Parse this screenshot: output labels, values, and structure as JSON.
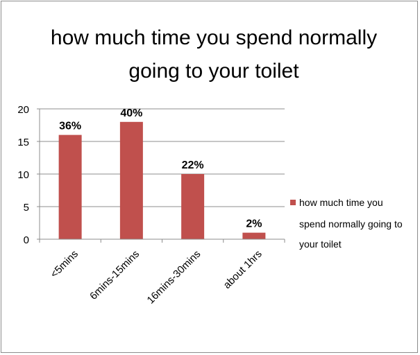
{
  "chart_data": {
    "type": "bar",
    "title_lines": [
      "how much time you spend normally",
      "going to your toilet"
    ],
    "categories": [
      "<5mins",
      "6mins-15mins",
      "16mins-30mins",
      "about 1hrs"
    ],
    "series": [
      {
        "name": "how much time you spend normally going to your toilet",
        "legend_lines": [
          "how much time you",
          "spend normally going to",
          "your toilet"
        ],
        "values": [
          16,
          18,
          10,
          1
        ],
        "data_labels": [
          "36%",
          "40%",
          "22%",
          "2%"
        ],
        "color": "#c0504d"
      }
    ],
    "ylim": [
      0,
      20
    ],
    "yticks": [
      0,
      5,
      10,
      15,
      20
    ],
    "grid": true,
    "legend_position": "right"
  }
}
